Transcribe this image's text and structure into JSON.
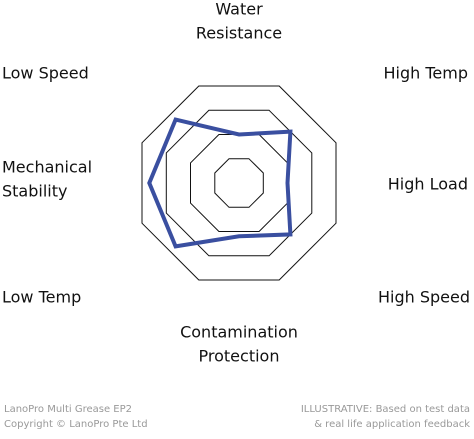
{
  "chart_data": {
    "type": "radar",
    "categories": [
      [
        "Water",
        "Resistance"
      ],
      [
        "High Temp"
      ],
      [
        "High Load"
      ],
      [
        "High Speed"
      ],
      [
        "Contamination",
        "Protection"
      ],
      [
        "Low Temp"
      ],
      [
        "Mechanical",
        "Stability"
      ],
      [
        "Low Speed"
      ]
    ],
    "series": [
      {
        "color": "#3a4fa0",
        "values": [
          2,
          3,
          2,
          3,
          2.2,
          3.7,
          3.7,
          3.7
        ]
      }
    ],
    "rlim": [
      0,
      4
    ],
    "rticks": [
      1,
      2,
      3,
      4
    ],
    "grid": true
  },
  "footer": {
    "left": [
      "LanoPro Multi Grease EP2",
      "Copyright © LanoPro Pte Ltd"
    ],
    "right": [
      "ILLUSTRATIVE: Based on test data",
      "& real life application feedback"
    ]
  }
}
